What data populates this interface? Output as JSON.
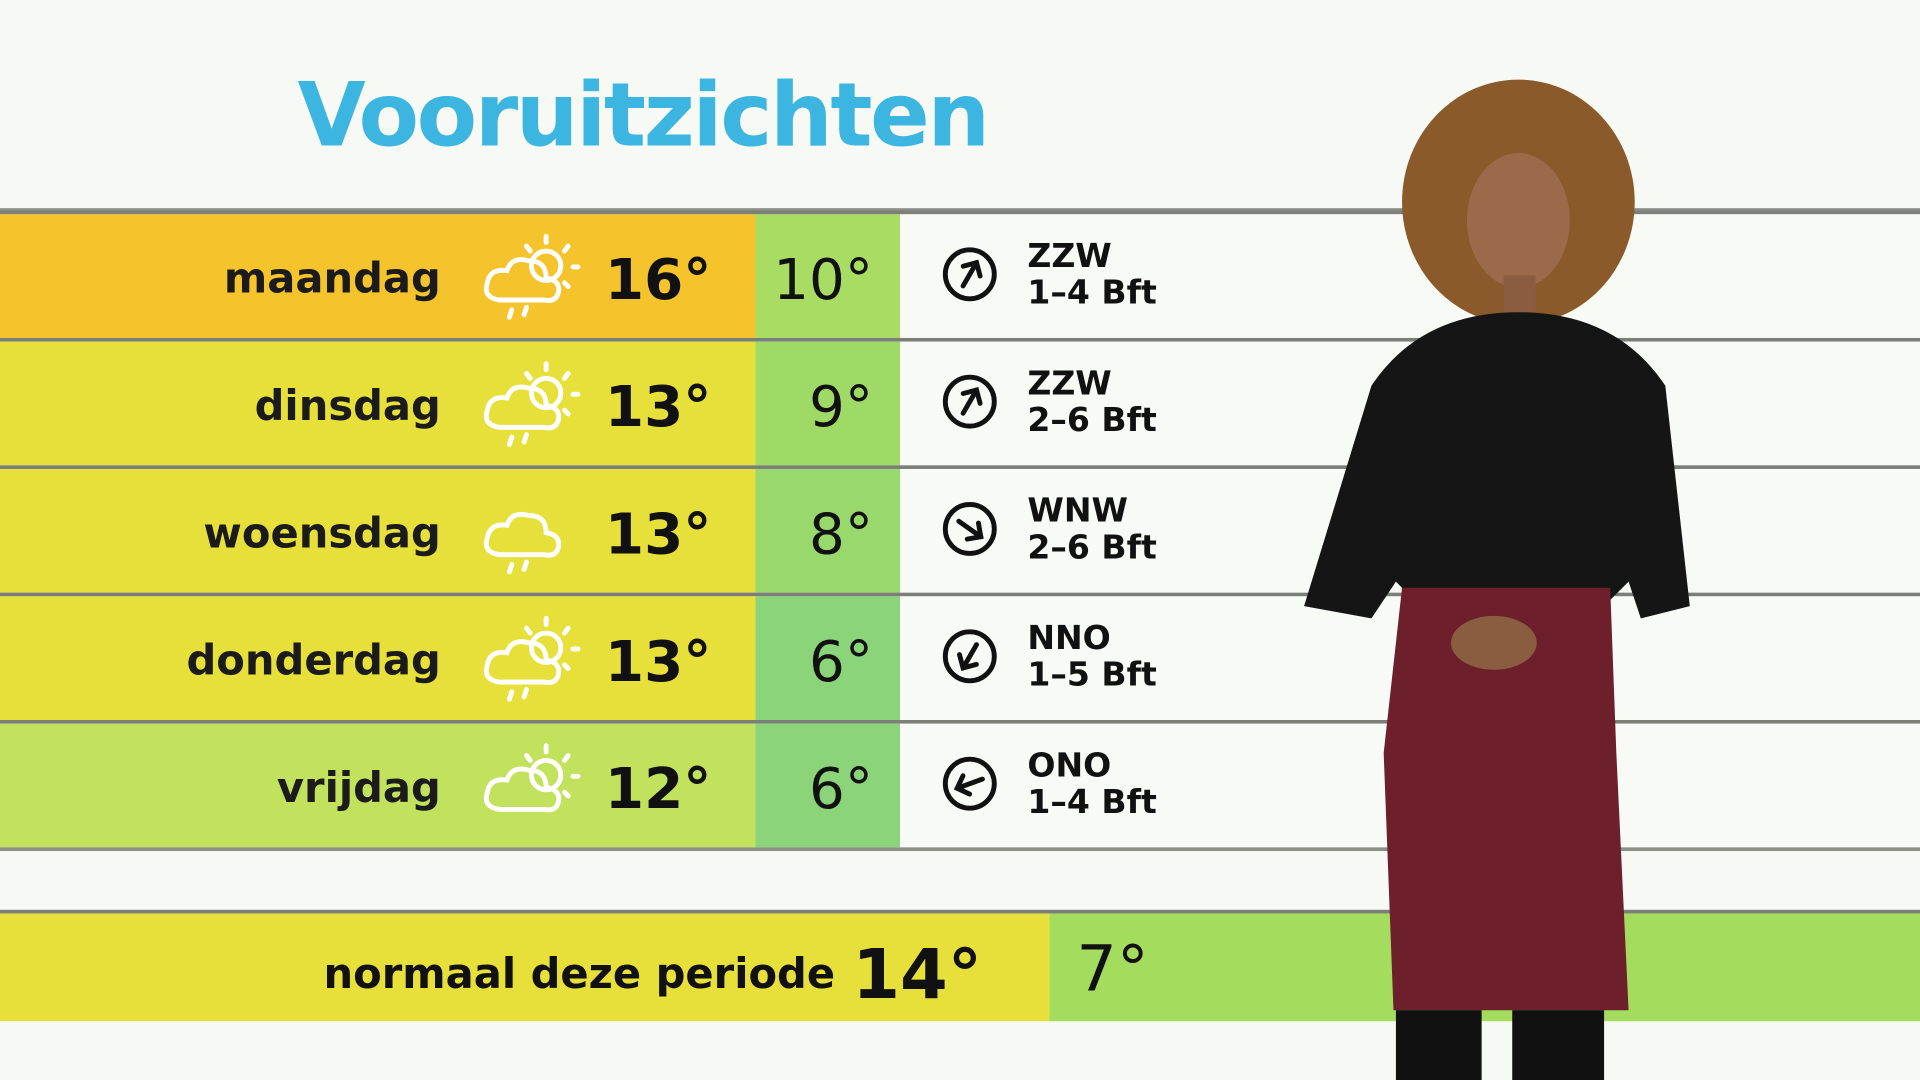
{
  "title": "Vooruitzichten",
  "colors": {
    "title": "#3cb6e0",
    "orange": "#f5c42c",
    "yellow": "#e8e03a",
    "light_green": "#c0e060",
    "green": "#a4dc5e"
  },
  "forecast": [
    {
      "day": "maandag",
      "icon": "sun-cloud-drizzle-icon",
      "max": "16°",
      "min": "10°",
      "wind_dir": "ZZW",
      "wind_force": "1–4 Bft",
      "arrow_deg": 30,
      "color": "#f5c42c",
      "low_color": "#a8dc62"
    },
    {
      "day": "dinsdag",
      "icon": "sun-cloud-rain-icon",
      "max": "13°",
      "min": "9°",
      "wind_dir": "ZZW",
      "wind_force": "2–6 Bft",
      "arrow_deg": 30,
      "color": "#e8e03a",
      "low_color": "#a0da66"
    },
    {
      "day": "woensdag",
      "icon": "cloud-rain-icon",
      "max": "13°",
      "min": "8°",
      "wind_dir": "WNW",
      "wind_force": "2–6 Bft",
      "arrow_deg": 125,
      "color": "#e8e03a",
      "low_color": "#98d86c"
    },
    {
      "day": "donderdag",
      "icon": "sun-cloud-drizzle-icon",
      "max": "13°",
      "min": "6°",
      "wind_dir": "NNO",
      "wind_force": "1–5 Bft",
      "arrow_deg": 210,
      "color": "#e8e03a",
      "low_color": "#8cd47a"
    },
    {
      "day": "vrijdag",
      "icon": "sun-cloud-icon",
      "max": "12°",
      "min": "6°",
      "wind_dir": "ONO",
      "wind_force": "1–4 Bft",
      "arrow_deg": 250,
      "color": "#c2e25e",
      "low_color": "#8cd47a"
    }
  ],
  "normal": {
    "label": "normaal deze periode",
    "max": "14°",
    "min": "7°"
  }
}
